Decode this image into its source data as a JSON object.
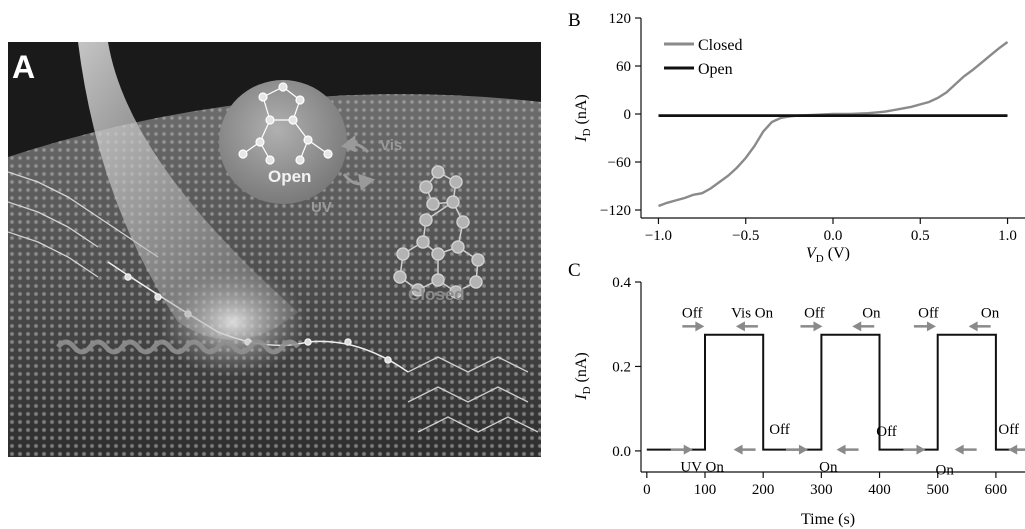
{
  "panel_a": {
    "letter": "A",
    "open_label": "Open",
    "closed_label": "Closed",
    "vis_label": "Vis",
    "uv_label": "UV",
    "colors": {
      "background": "#1a1a1a",
      "surface": "#5a5a5a",
      "bubble": "#8c8c8c"
    },
    "icons": [
      "light-cone",
      "molecule-open",
      "molecule-closed",
      "graphene-lattice",
      "conversion-arrows"
    ]
  },
  "chart_data": [
    {
      "panel": "B",
      "type": "line",
      "xlabel_main": "V",
      "xlabel_sub": "D",
      "xlabel_unit": " (V)",
      "ylabel_main": "I",
      "ylabel_sub": "D",
      "ylabel_unit": " (nA)",
      "xlim": [
        -1.1,
        1.1
      ],
      "ylim": [
        -130,
        120
      ],
      "xticks": [
        -1.0,
        -0.5,
        0.0,
        0.5,
        1.0
      ],
      "xtick_labels": [
        "−1.0",
        "−0.5",
        "0.0",
        "0.5",
        "1.0"
      ],
      "yticks": [
        -120,
        -60,
        0,
        60,
        120
      ],
      "ytick_labels": [
        "−120",
        "−60",
        "0",
        "60",
        "120"
      ],
      "legend_position": "top-left",
      "series": [
        {
          "name": "Closed",
          "color": "#8a8a8a",
          "x": [
            -1.0,
            -0.95,
            -0.9,
            -0.85,
            -0.8,
            -0.75,
            -0.7,
            -0.65,
            -0.6,
            -0.55,
            -0.5,
            -0.45,
            -0.4,
            -0.35,
            -0.3,
            -0.25,
            -0.2,
            -0.1,
            0.0,
            0.1,
            0.2,
            0.25,
            0.3,
            0.35,
            0.4,
            0.45,
            0.5,
            0.55,
            0.6,
            0.65,
            0.7,
            0.75,
            0.8,
            0.85,
            0.9,
            0.95,
            1.0
          ],
          "y": [
            -115,
            -111,
            -108,
            -105,
            -101,
            -99,
            -93,
            -85,
            -77,
            -67,
            -55,
            -40,
            -22,
            -10,
            -5,
            -3,
            -2,
            -1,
            0,
            0,
            1,
            2,
            3,
            5,
            7,
            9,
            12,
            15,
            20,
            27,
            37,
            47,
            55,
            64,
            73,
            82,
            90
          ]
        },
        {
          "name": "Open",
          "color": "#111111",
          "x": [
            -1.0,
            -0.5,
            0.0,
            0.5,
            1.0
          ],
          "y": [
            -2,
            -2,
            -2,
            -2,
            -2
          ]
        }
      ]
    },
    {
      "panel": "C",
      "type": "line",
      "xlabel": "Time (s)",
      "ylabel_main": "I",
      "ylabel_sub": "D",
      "ylabel_unit": " (nA)",
      "xlim": [
        -10,
        650
      ],
      "ylim": [
        -0.05,
        0.4
      ],
      "xticks": [
        0,
        100,
        200,
        300,
        400,
        500,
        600
      ],
      "xtick_labels": [
        "0",
        "100",
        "200",
        "300",
        "400",
        "500",
        "600"
      ],
      "yticks": [
        0.0,
        0.2,
        0.4
      ],
      "ytick_labels": [
        "0.0",
        "0.2",
        "0.4"
      ],
      "series": [
        {
          "name": "",
          "color": "#111111",
          "x": [
            0,
            100,
            100,
            200,
            200,
            300,
            300,
            400,
            400,
            500,
            500,
            600,
            600,
            650
          ],
          "y": [
            0.003,
            0.003,
            0.275,
            0.275,
            0.003,
            0.003,
            0.275,
            0.275,
            0.003,
            0.003,
            0.275,
            0.275,
            0.003,
            0.003
          ]
        }
      ],
      "annotations": [
        {
          "text": "UV On",
          "x": 95,
          "y": -0.037
        },
        {
          "text": "Off",
          "x": 228,
          "y": 0.052
        },
        {
          "text": "On",
          "x": 312,
          "y": -0.037
        },
        {
          "text": "Off",
          "x": 412,
          "y": 0.047
        },
        {
          "text": "On",
          "x": 512,
          "y": -0.044
        },
        {
          "text": "Off",
          "x": 622,
          "y": 0.052
        },
        {
          "text": "Off",
          "x": 78,
          "y": 0.328
        },
        {
          "text": "Vis On",
          "x": 181,
          "y": 0.328
        },
        {
          "text": "Off",
          "x": 288,
          "y": 0.328
        },
        {
          "text": "On",
          "x": 386,
          "y": 0.328
        },
        {
          "text": "Off",
          "x": 484,
          "y": 0.328
        },
        {
          "text": "On",
          "x": 590,
          "y": 0.328
        }
      ],
      "arrows": [
        {
          "x": 60,
          "y": 0.003,
          "dir": "right"
        },
        {
          "x": 168,
          "y": 0.003,
          "dir": "left"
        },
        {
          "x": 258,
          "y": 0.003,
          "dir": "right"
        },
        {
          "x": 345,
          "y": 0.003,
          "dir": "left"
        },
        {
          "x": 460,
          "y": 0.003,
          "dir": "right"
        },
        {
          "x": 548,
          "y": 0.003,
          "dir": "left"
        },
        {
          "x": 640,
          "y": 0.003,
          "dir": "left"
        },
        {
          "x": 80,
          "y": 0.295,
          "dir": "right"
        },
        {
          "x": 172,
          "y": 0.295,
          "dir": "left"
        },
        {
          "x": 283,
          "y": 0.295,
          "dir": "right"
        },
        {
          "x": 372,
          "y": 0.295,
          "dir": "left"
        },
        {
          "x": 478,
          "y": 0.295,
          "dir": "right"
        },
        {
          "x": 572,
          "y": 0.295,
          "dir": "left"
        }
      ]
    }
  ],
  "panel_labels": {
    "b": "B",
    "c": "C"
  }
}
